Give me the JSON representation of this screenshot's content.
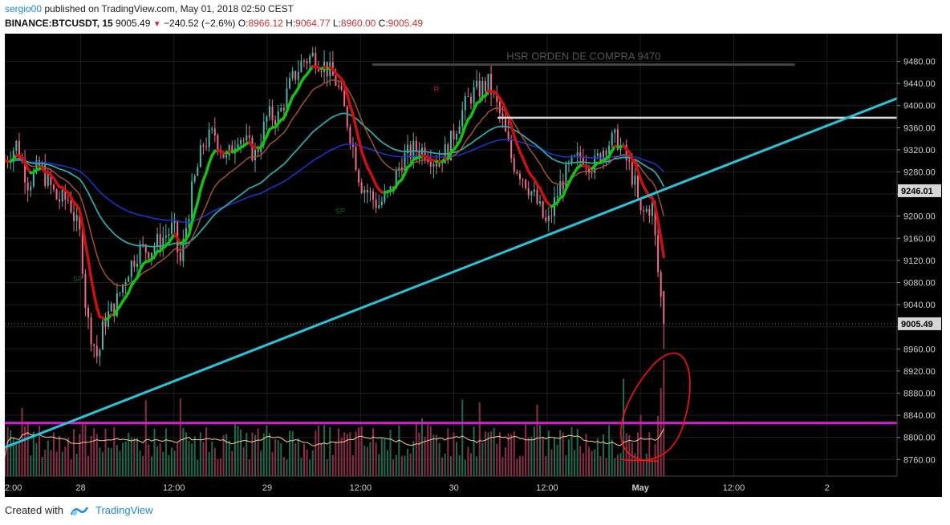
{
  "header": {
    "author": "sergio00",
    "published_text": " published on TradingView.com, May 01, 2018 02:50 CEST",
    "symbol": "BINANCE:BTCUSDT, 15",
    "last": "9005.49",
    "change": "−240.52 (−2.6%)",
    "o_label": "O:",
    "o_value": "8966.12",
    "h_label": "H:",
    "h_value": "9064.77",
    "l_label": "L:",
    "l_value": "8960.00",
    "c_label": "C:",
    "c_value": "9005.49"
  },
  "footer": {
    "created_with": "Created with",
    "brand": "TradingView"
  },
  "colors": {
    "background": "#000000",
    "grid": "#1e1e1e",
    "up_candle": "#4db6ac",
    "down_candle": "#ef6c8a",
    "trendline": "#26c6da",
    "support_line": "#d81bd8",
    "resistance_line": "#d9d9d9",
    "hsr_line": "#444444",
    "ema_fast": "#13c213",
    "ema_fast_down": "#cc1010",
    "ema_mid": "#a0522d",
    "ema_slow": "#2ea6a6",
    "ema_slowest": "#1a35d6",
    "volume_ma": "#ffcc99",
    "annotation": "#ff1010",
    "label_bg": "#d6d6d6"
  },
  "chart_data": {
    "type": "candlestick",
    "symbol": "BINANCE:BTCUSDT",
    "interval": "15",
    "ylim": [
      8730,
      9530
    ],
    "y_ticks": [
      8760,
      8800,
      8840,
      8880,
      8920,
      8960,
      9000,
      9040,
      9080,
      9120,
      9160,
      9200,
      9240,
      9280,
      9320,
      9360,
      9400,
      9440,
      9480
    ],
    "y_tick_labels": [
      "8760.00",
      "8800.00",
      "8840.00",
      "8880.00",
      "8920.00",
      "8960.00",
      "9000.00",
      "9040.00",
      "9080.00",
      "9120.00",
      "9160.00",
      "9200.00",
      "9240.00",
      "9280.00",
      "9320.00",
      "9360.00",
      "9400.00",
      "9440.00",
      "9480.00"
    ],
    "x_ticks": [
      {
        "t": 0,
        "label": "2:00"
      },
      {
        "t": 26,
        "label": "28"
      },
      {
        "t": 58,
        "label": "12:00"
      },
      {
        "t": 90,
        "label": "29"
      },
      {
        "t": 122,
        "label": "12:00"
      },
      {
        "t": 154,
        "label": "30"
      },
      {
        "t": 186,
        "label": "12:00"
      },
      {
        "t": 218,
        "label": "May"
      },
      {
        "t": 250,
        "label": "12:00"
      },
      {
        "t": 282,
        "label": "2"
      }
    ],
    "bar_count": 230,
    "t_max": 306,
    "close_anchors": [
      [
        0,
        9300
      ],
      [
        4,
        9330
      ],
      [
        8,
        9260
      ],
      [
        12,
        9290
      ],
      [
        18,
        9230
      ],
      [
        22,
        9230
      ],
      [
        26,
        9160
      ],
      [
        28,
        9020
      ],
      [
        32,
        8940
      ],
      [
        34,
        9010
      ],
      [
        38,
        9040
      ],
      [
        42,
        9100
      ],
      [
        46,
        9140
      ],
      [
        50,
        9140
      ],
      [
        54,
        9160
      ],
      [
        58,
        9180
      ],
      [
        60,
        9110
      ],
      [
        64,
        9240
      ],
      [
        68,
        9330
      ],
      [
        72,
        9350
      ],
      [
        76,
        9300
      ],
      [
        80,
        9350
      ],
      [
        86,
        9310
      ],
      [
        90,
        9380
      ],
      [
        94,
        9380
      ],
      [
        98,
        9440
      ],
      [
        102,
        9480
      ],
      [
        106,
        9490
      ],
      [
        110,
        9470
      ],
      [
        114,
        9440
      ],
      [
        118,
        9360
      ],
      [
        122,
        9260
      ],
      [
        128,
        9220
      ],
      [
        132,
        9240
      ],
      [
        136,
        9300
      ],
      [
        140,
        9320
      ],
      [
        144,
        9320
      ],
      [
        148,
        9300
      ],
      [
        152,
        9320
      ],
      [
        156,
        9380
      ],
      [
        160,
        9420
      ],
      [
        166,
        9440
      ],
      [
        170,
        9380
      ],
      [
        174,
        9300
      ],
      [
        178,
        9270
      ],
      [
        182,
        9230
      ],
      [
        186,
        9180
      ],
      [
        190,
        9250
      ],
      [
        194,
        9290
      ],
      [
        198,
        9310
      ],
      [
        202,
        9290
      ],
      [
        206,
        9330
      ],
      [
        210,
        9340
      ],
      [
        214,
        9290
      ],
      [
        216,
        9260
      ],
      [
        218,
        9200
      ],
      [
        222,
        9220
      ],
      [
        224,
        9100
      ],
      [
        226,
        9005
      ]
    ],
    "last_price": 9005.49,
    "last_price_label": "9005.49",
    "marker_price": 9246.01,
    "marker_label": "9246.01",
    "hsr_level": 9474,
    "hsr_label": "HSR ORDEN DE COMPRA 9470",
    "hsr_t_range": [
      126,
      271
    ],
    "resistance_level": 9378,
    "resistance_t_range": [
      169,
      306
    ],
    "support_level": 8826,
    "trendline": [
      [
        0,
        8782
      ],
      [
        306,
        9413
      ]
    ],
    "small_labels": [
      {
        "t": 25,
        "price": 9082,
        "text": "SP"
      },
      {
        "t": 115,
        "price": 9205,
        "text": "SP"
      },
      {
        "t": 148,
        "price": 9425,
        "text": "R"
      }
    ],
    "annotation": "hand-drawn red ellipse around the final volume spike"
  }
}
